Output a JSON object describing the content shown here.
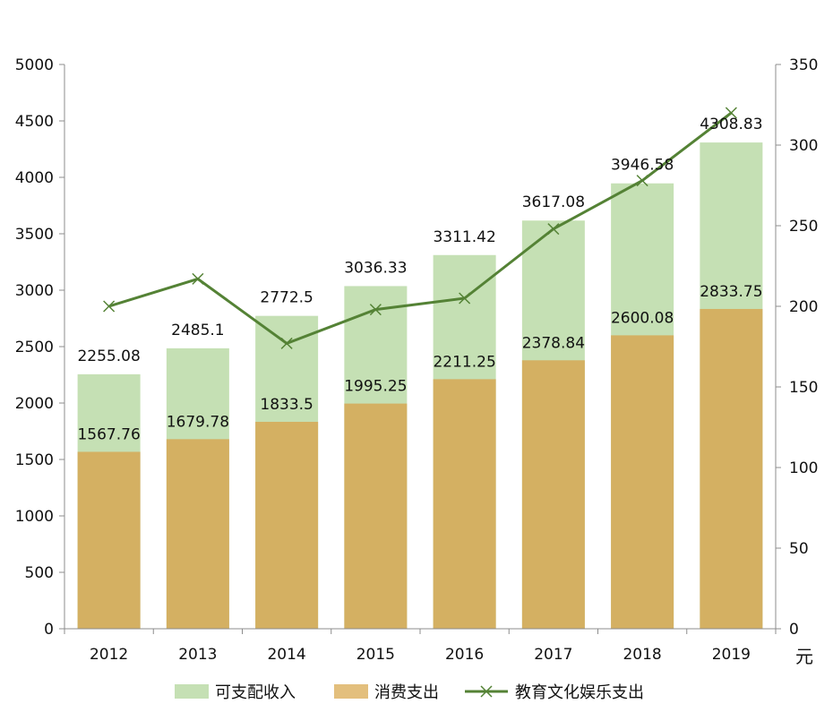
{
  "chart_data": {
    "type": "bar",
    "categories": [
      "2012",
      "2013",
      "2014",
      "2015",
      "2016",
      "2017",
      "2018",
      "2019"
    ],
    "series": [
      {
        "name": "可支配收入",
        "kind": "bar",
        "axis": "left",
        "color": "#c5e0b4",
        "values": [
          2255.08,
          2485.1,
          2772.5,
          3036.33,
          3311.42,
          3617.08,
          3946.58,
          4308.83
        ],
        "labels": [
          "2255.08",
          "2485.1",
          "2772.5",
          "3036.33",
          "3311.42",
          "3617.08",
          "3946.58",
          "4308.83"
        ]
      },
      {
        "name": "消费支出",
        "kind": "bar",
        "axis": "left",
        "color": "#d4b062",
        "values": [
          1567.76,
          1679.78,
          1833.5,
          1995.25,
          2211.25,
          2378.84,
          2600.08,
          2833.75
        ],
        "labels": [
          "1567.76",
          "1679.78",
          "1833.5",
          "1995.25",
          "2211.25",
          "2378.84",
          "2600.08",
          "2833.75"
        ]
      },
      {
        "name": "教育文化娱乐支出",
        "kind": "line",
        "axis": "right",
        "color": "#548235",
        "marker": "x",
        "values": [
          200,
          217,
          177,
          198,
          205,
          248,
          278,
          320
        ]
      }
    ],
    "yleft": {
      "lim": [
        0,
        5000
      ],
      "ticks": [
        "0",
        "500",
        "1000",
        "1500",
        "2000",
        "2500",
        "3000",
        "3500",
        "4000",
        "4500",
        "5000"
      ]
    },
    "yright": {
      "lim": [
        0,
        350
      ],
      "ticks": [
        "0",
        "50",
        "100",
        "150",
        "200",
        "250",
        "300",
        "350"
      ],
      "unit": "元"
    },
    "grid": false,
    "legend": "bottom"
  }
}
